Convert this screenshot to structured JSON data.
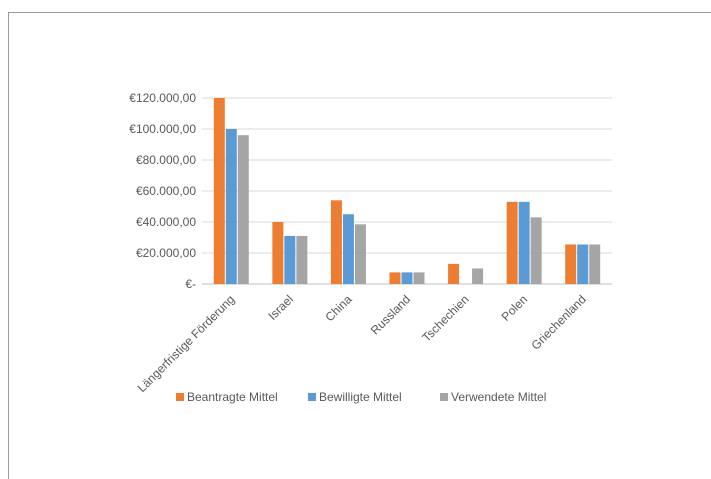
{
  "chart_data": {
    "type": "bar",
    "categories": [
      "Längerfristige Förderung",
      "Israel",
      "China",
      "Russland",
      "Tschechien",
      "Polen",
      "Griechenland"
    ],
    "series": [
      {
        "name": "Beantragte Mittel",
        "color": "#ED7D31",
        "values": [
          120000,
          40000,
          54000,
          7500,
          13000,
          53000,
          25500
        ]
      },
      {
        "name": "Bewilligte Mittel",
        "color": "#5B9BD5",
        "values": [
          100000,
          31000,
          45000,
          7500,
          0,
          53000,
          25500
        ]
      },
      {
        "name": "Verwendete Mittel",
        "color": "#A5A5A5",
        "values": [
          96000,
          31000,
          38500,
          7500,
          10000,
          43000,
          25500
        ]
      }
    ],
    "ylim": [
      0,
      120000
    ],
    "yticks": [
      0,
      20000,
      40000,
      60000,
      80000,
      100000,
      120000
    ],
    "ytick_labels": [
      "€-",
      "€20.000,00",
      "€40.000,00",
      "€60.000,00",
      "€80.000,00",
      "€100.000,00",
      "€120.000,00"
    ],
    "grid": true,
    "legend_position": "bottom",
    "title": "",
    "xlabel": "",
    "ylabel": ""
  }
}
